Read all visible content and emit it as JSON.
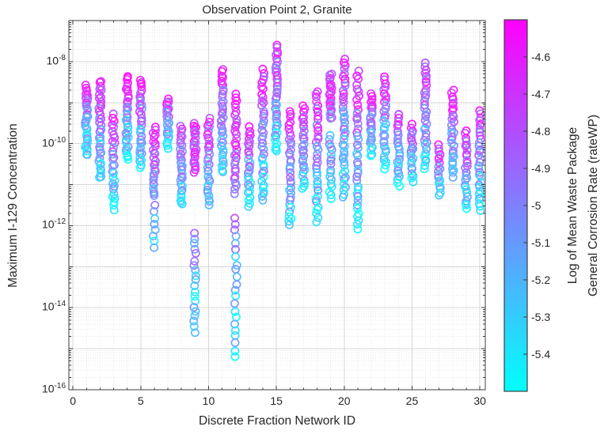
{
  "chart_data": {
    "type": "scatter",
    "title": "Observation Point 2, Granite",
    "xlabel": "Discrete Fraction Network ID",
    "ylabel": "Maximum I-129 Concentration",
    "xlim": [
      -0.3,
      30.4
    ],
    "ylim_exponents": [
      -16,
      -7
    ],
    "yscale": "log",
    "grid": "major and minor, dotted gray, on",
    "xticks": [
      "0",
      "5",
      "10",
      "15",
      "20",
      "25",
      "30"
    ],
    "xtick_values": [
      0,
      5,
      10,
      15,
      20,
      25,
      30
    ],
    "ytick_exponents": [
      -8,
      -10,
      -12,
      -14,
      -16
    ],
    "marker": {
      "shape": "hollow-circle",
      "radius_px": 4.6,
      "stroke_width_px": 1.7
    },
    "colorbar": {
      "label_lines": [
        "Log of Mean Waste Package",
        "General Corrosion Rate (rateWP)"
      ],
      "tick_labels": [
        "-4.6",
        "-4.7",
        "-4.8",
        "-4.9",
        "-5",
        "-5.1",
        "-5.2",
        "-5.3",
        "-5.4"
      ],
      "tick_values": [
        -4.6,
        -4.7,
        -4.8,
        -4.9,
        -5.0,
        -5.1,
        -5.2,
        -5.3,
        -5.4
      ],
      "range": [
        -5.5,
        -4.5
      ],
      "colormap": "cool",
      "color_top": "#ff00ff",
      "color_bottom": "#00ffff"
    },
    "columns_note": "x = network ID 1..30; segments = [log10_top, log10_bottom, point_count] of maximum I-129 concentration; colors graded magenta(top) to cyan(bottom) with mixing",
    "columns": [
      {
        "id": 1,
        "segments": [
          [
            -8.6,
            -10.3,
            34
          ]
        ]
      },
      {
        "id": 2,
        "segments": [
          [
            -8.45,
            -10.85,
            38
          ]
        ]
      },
      {
        "id": 3,
        "segments": [
          [
            -9.3,
            -11.6,
            30
          ]
        ]
      },
      {
        "id": 4,
        "segments": [
          [
            -8.35,
            -10.4,
            36
          ]
        ]
      },
      {
        "id": 5,
        "segments": [
          [
            -8.45,
            -10.6,
            34
          ]
        ]
      },
      {
        "id": 6,
        "segments": [
          [
            -9.6,
            -11.3,
            26
          ],
          [
            -11.5,
            -12.55,
            8
          ]
        ]
      },
      {
        "id": 7,
        "segments": [
          [
            -8.9,
            -10.1,
            24
          ]
        ]
      },
      {
        "id": 8,
        "segments": [
          [
            -9.6,
            -11.5,
            30
          ]
        ]
      },
      {
        "id": 9,
        "segments": [
          [
            -9.5,
            -10.7,
            24
          ],
          [
            -12.2,
            -14.6,
            20
          ]
        ]
      },
      {
        "id": 10,
        "segments": [
          [
            -9.4,
            -11.5,
            30
          ]
        ]
      },
      {
        "id": 11,
        "segments": [
          [
            -8.2,
            -10.7,
            38
          ]
        ]
      },
      {
        "id": 12,
        "segments": [
          [
            -8.8,
            -11.2,
            30
          ],
          [
            -11.8,
            -15.2,
            22
          ]
        ]
      },
      {
        "id": 13,
        "segments": [
          [
            -9.6,
            -11.5,
            28
          ]
        ]
      },
      {
        "id": 14,
        "segments": [
          [
            -8.2,
            -11.4,
            40
          ]
        ]
      },
      {
        "id": 15,
        "segments": [
          [
            -7.6,
            -10.2,
            40
          ]
        ]
      },
      {
        "id": 16,
        "segments": [
          [
            -9.2,
            -12.0,
            34
          ]
        ]
      },
      {
        "id": 17,
        "segments": [
          [
            -9.1,
            -11.1,
            28
          ]
        ]
      },
      {
        "id": 18,
        "segments": [
          [
            -8.7,
            -11.9,
            36
          ]
        ]
      },
      {
        "id": 19,
        "segments": [
          [
            -8.3,
            -9.4,
            22
          ],
          [
            -9.8,
            -11.35,
            18
          ]
        ]
      },
      {
        "id": 20,
        "segments": [
          [
            -7.95,
            -11.3,
            42
          ]
        ]
      },
      {
        "id": 21,
        "segments": [
          [
            -8.25,
            -12.1,
            40
          ]
        ]
      },
      {
        "id": 22,
        "segments": [
          [
            -8.8,
            -10.3,
            26
          ]
        ]
      },
      {
        "id": 23,
        "segments": [
          [
            -8.4,
            -10.6,
            30
          ]
        ]
      },
      {
        "id": 24,
        "segments": [
          [
            -9.25,
            -11.0,
            26
          ]
        ]
      },
      {
        "id": 25,
        "segments": [
          [
            -9.55,
            -10.9,
            22
          ]
        ]
      },
      {
        "id": 26,
        "segments": [
          [
            -8.05,
            -10.6,
            34
          ]
        ]
      },
      {
        "id": 27,
        "segments": [
          [
            -10.05,
            -11.25,
            18
          ]
        ]
      },
      {
        "id": 28,
        "segments": [
          [
            -8.7,
            -10.8,
            30
          ]
        ]
      },
      {
        "id": 29,
        "segments": [
          [
            -9.7,
            -11.6,
            26
          ]
        ]
      },
      {
        "id": 30,
        "segments": [
          [
            -9.2,
            -11.6,
            32
          ]
        ]
      }
    ],
    "axis_colors": {
      "box": "#3f3f3f",
      "tick": "#3a3a3a",
      "grid_major": "#d7d7d7",
      "grid_minor": "#e8e8e8",
      "text": "#262626",
      "background": "#ffffff"
    }
  }
}
